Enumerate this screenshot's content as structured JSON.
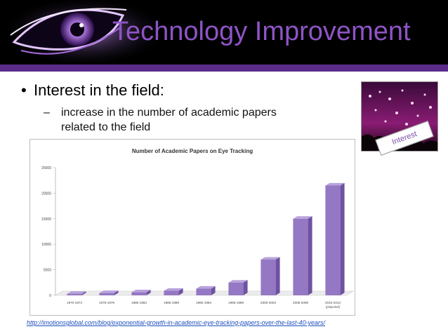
{
  "slide": {
    "title": "Technology Improvement",
    "bullet": "Interest in the field:",
    "subbullet": "increase in the number of academic papers related to the field",
    "thumbnail_caption": "Interest",
    "source_link": "http://imotionsglobal.com/blog/exponential-growth-in-academic-eye-tracking-papers-over-the-last-40-years/"
  },
  "colors": {
    "title": "#8e54c5",
    "header_bar": "#5b2c8a",
    "bar_front": "#9478c3",
    "bar_side": "#6f52a0",
    "bar_top": "#b8a3dc"
  },
  "chart_data": {
    "type": "bar",
    "title": "Number of Academic Papers on Eye Tracking",
    "categories": [
      "1970-1974",
      "1975-1979",
      "1980-1984",
      "1985-1989",
      "1990-1994",
      "1995-1999",
      "2000-2004",
      "2005-2009",
      "2010-2014"
    ],
    "category_notes": [
      "",
      "",
      "",
      "",
      "",
      "",
      "",
      "",
      "(projected)"
    ],
    "values": [
      300,
      450,
      600,
      900,
      1300,
      2500,
      7000,
      15000,
      21500
    ],
    "ylim": [
      0,
      25000
    ],
    "yticks": [
      "0",
      "5000",
      "10000",
      "15000",
      "20000",
      "25000"
    ],
    "xlabel": "",
    "ylabel": "",
    "grid": false,
    "style": "3d"
  }
}
